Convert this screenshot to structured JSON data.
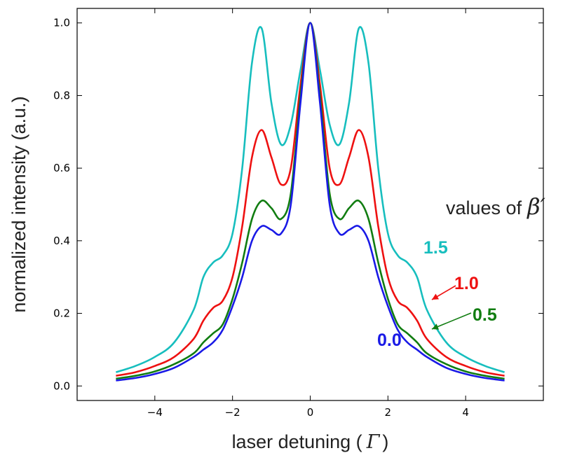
{
  "chart_data": {
    "type": "line",
    "xlabel_text": "laser detuning (",
    "xlabel_symbol": "Γ",
    "xlabel_close": ")",
    "ylabel": "normalized intensity (a.u.)",
    "xlim": [
      -6,
      6
    ],
    "ylim": [
      -0.04,
      1.04
    ],
    "xticks": [
      -4,
      -2,
      0,
      2,
      4
    ],
    "xtick_labels": [
      "−4",
      "−2",
      "0",
      "2",
      "4"
    ],
    "yticks": [
      0.0,
      0.2,
      0.4,
      0.6,
      0.8,
      1.0
    ],
    "ytick_labels": [
      "0.0",
      "0.2",
      "0.4",
      "0.6",
      "0.8",
      "1.0"
    ],
    "grid": false,
    "annotation_title": "values of",
    "annotation_symbol": "β′",
    "series": [
      {
        "name": "1.5",
        "color": "#17bebe",
        "x": [
          0,
          0.25,
          0.5,
          0.75,
          1.0,
          1.25,
          1.5,
          1.75,
          2.0,
          2.25,
          2.5,
          2.75,
          3.0,
          3.5,
          4.0,
          4.5,
          5.0
        ],
        "y": [
          1.0,
          0.87,
          0.72,
          0.665,
          0.78,
          0.985,
          0.89,
          0.6,
          0.42,
          0.36,
          0.34,
          0.3,
          0.21,
          0.12,
          0.08,
          0.055,
          0.038
        ]
      },
      {
        "name": "1.0",
        "color": "#ee1111",
        "x": [
          0,
          0.25,
          0.5,
          0.75,
          1.0,
          1.25,
          1.5,
          1.75,
          2.0,
          2.25,
          2.5,
          2.75,
          3.0,
          3.5,
          4.0,
          4.5,
          5.0
        ],
        "y": [
          1.0,
          0.83,
          0.6,
          0.555,
          0.63,
          0.705,
          0.63,
          0.44,
          0.3,
          0.235,
          0.215,
          0.18,
          0.13,
          0.08,
          0.055,
          0.038,
          0.028
        ]
      },
      {
        "name": "0.5",
        "color": "#117d11",
        "x": [
          0,
          0.25,
          0.5,
          0.75,
          1.0,
          1.25,
          1.5,
          1.75,
          2.0,
          2.25,
          2.5,
          2.75,
          3.0,
          3.5,
          4.0,
          4.5,
          5.0
        ],
        "y": [
          1.0,
          0.8,
          0.53,
          0.46,
          0.49,
          0.51,
          0.46,
          0.34,
          0.24,
          0.17,
          0.145,
          0.12,
          0.09,
          0.06,
          0.04,
          0.028,
          0.02
        ]
      },
      {
        "name": "0.0",
        "color": "#1a1ae6",
        "x": [
          0,
          0.25,
          0.5,
          0.75,
          1.0,
          1.25,
          1.5,
          1.75,
          2.0,
          2.25,
          2.5,
          2.75,
          3.0,
          3.5,
          4.0,
          4.5,
          5.0
        ],
        "y": [
          1.0,
          0.78,
          0.5,
          0.42,
          0.43,
          0.44,
          0.4,
          0.3,
          0.22,
          0.155,
          0.12,
          0.1,
          0.08,
          0.05,
          0.033,
          0.022,
          0.015
        ]
      }
    ]
  }
}
